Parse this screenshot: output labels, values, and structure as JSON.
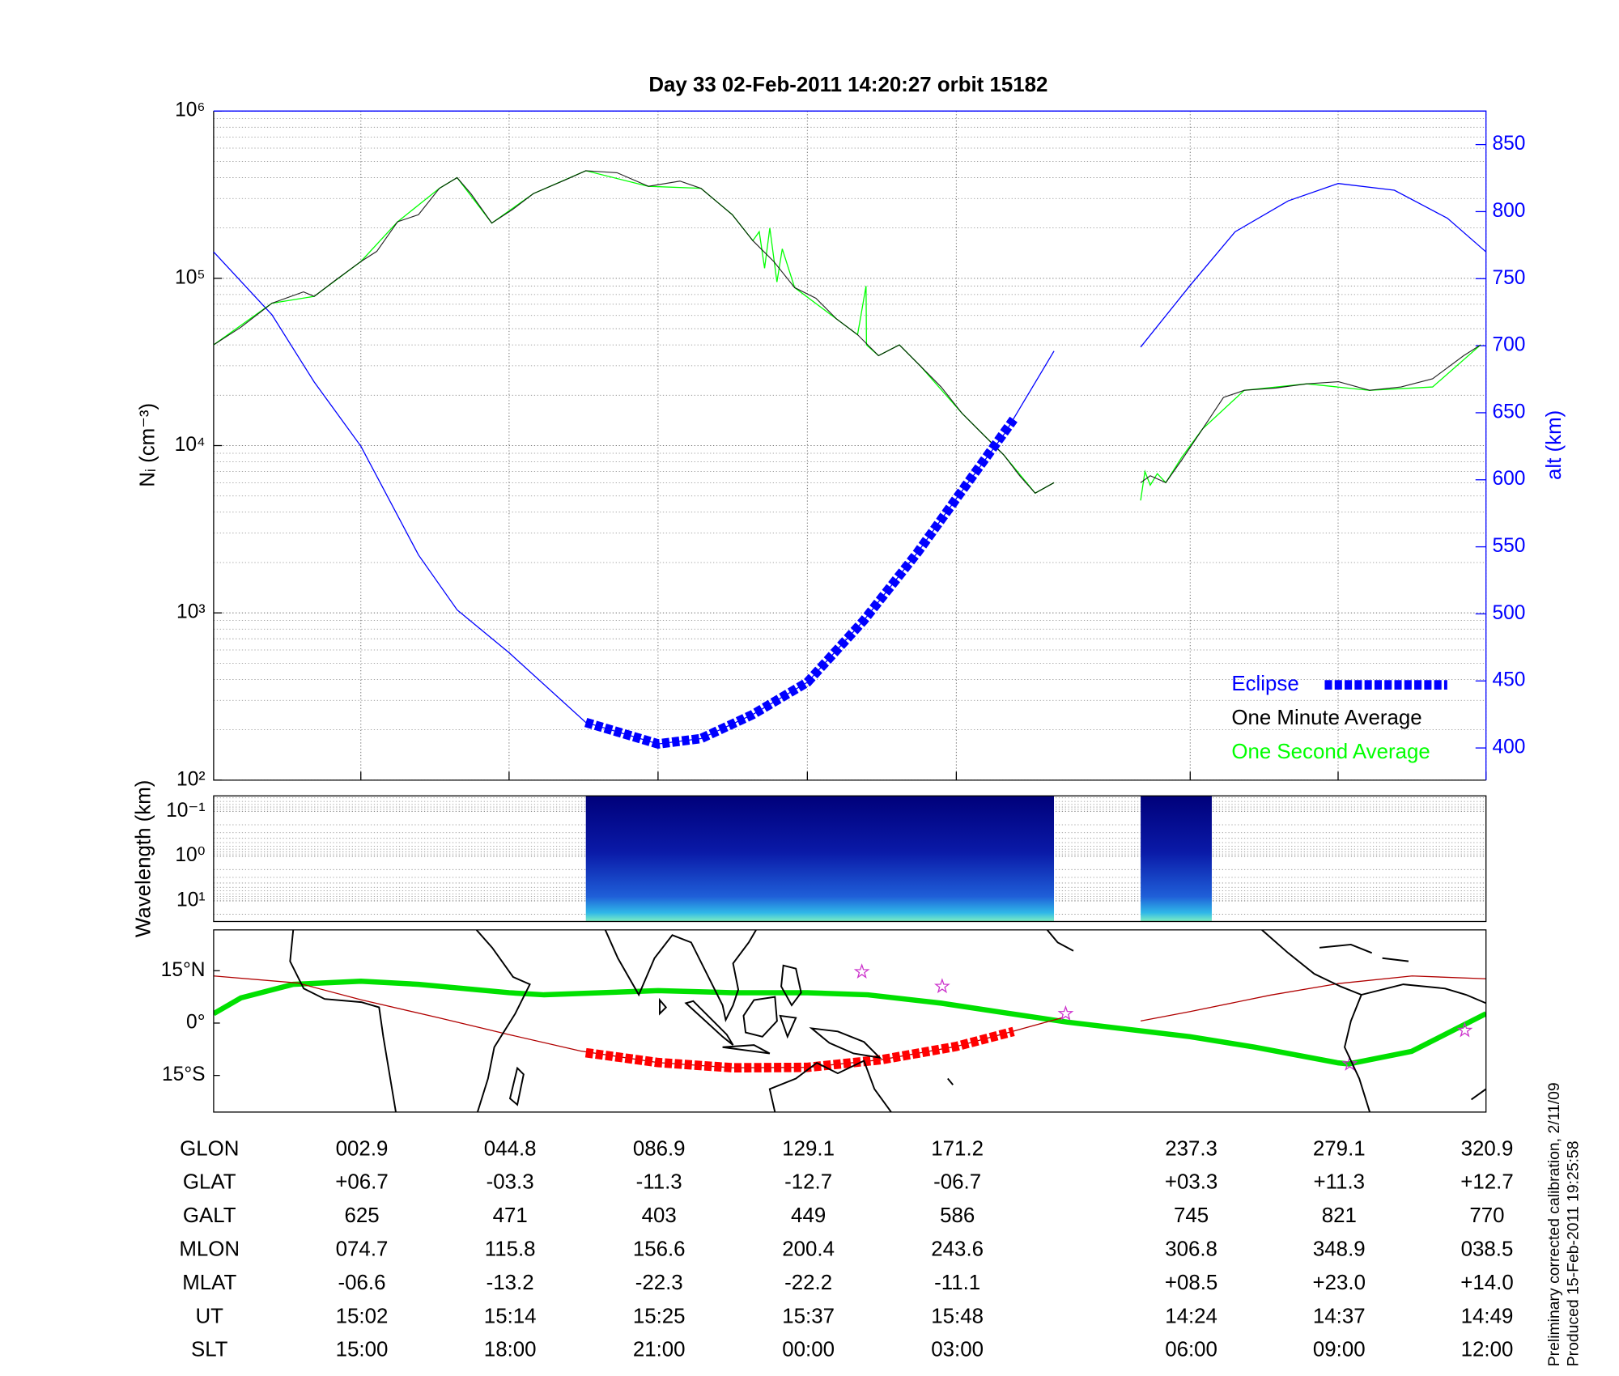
{
  "chart_data": [
    {
      "type": "line",
      "title": "Day 33  02-Feb-2011 14:20:27   orbit 15182",
      "ylabel": "Nᵢ (cm⁻³)",
      "y2label": "alt (km)",
      "log_y": true,
      "grid": true,
      "legend": "lower right",
      "xlim": [
        -38.7,
        320.9
      ],
      "xticks": [
        2.9,
        44.8,
        86.9,
        129.1,
        171.2,
        237.3,
        279.1,
        320.9
      ],
      "ylim": [
        100,
        1000000
      ],
      "yticks": [
        {
          "value": 100,
          "label": "10²"
        },
        {
          "value": 1000,
          "label": "10³"
        },
        {
          "value": 10000,
          "label": "10⁴"
        },
        {
          "value": 100000,
          "label": "10⁵"
        },
        {
          "value": 1000000,
          "label": "10⁶"
        }
      ],
      "y2lim": [
        376,
        875
      ],
      "y2ticks": [
        400,
        450,
        500,
        550,
        600,
        650,
        700,
        750,
        800,
        850
      ],
      "y2color": "#0000ff",
      "series": [
        {
          "name": "Eclipse",
          "color": "#0000ff",
          "axis": "y2",
          "dashed": true,
          "x": [
            66.5,
            86.9,
            99.0,
            113.7,
            129.1,
            145.0,
            160.0,
            171.2,
            187.4
          ],
          "values": [
            419,
            403,
            407,
            425,
            449,
            495,
            545,
            586,
            645
          ]
        },
        {
          "name": "One Minute Average",
          "color": "#000000",
          "x": [
            -38.7,
            -31.0,
            -22.2,
            -13.3,
            -10.3,
            -4.4,
            2.9,
            7.4,
            13.3,
            19.2,
            25.1,
            30.1,
            34.0,
            39.9,
            45.8,
            51.7,
            60.6,
            66.5,
            75.3,
            84.2,
            93.1,
            99.0,
            107.9,
            113.7,
            119.6,
            125.5,
            131.5,
            137.4,
            143.3,
            149.2,
            155.1,
            161.0,
            166.9,
            172.8,
            178.7,
            184.6,
            189.1,
            193.5,
            198.8,
            null,
            223.3,
            226.0,
            230.4,
            234.9,
            240.8,
            246.7,
            252.6,
            261.5,
            270.3,
            279.2,
            288.0,
            296.9,
            305.8,
            314.6,
            319.4
          ],
          "values": [
            40000,
            51000,
            71000,
            83000,
            78000,
            97000,
            126000,
            145000,
            218000,
            240000,
            345000,
            400000,
            321000,
            214000,
            258000,
            321000,
            387000,
            440000,
            428000,
            355000,
            381000,
            345000,
            240000,
            168000,
            126000,
            88000,
            76000,
            57000,
            46000,
            34500,
            40000,
            30000,
            22400,
            15600,
            11700,
            8800,
            6600,
            5200,
            6000,
            null,
            6000,
            6600,
            6000,
            8200,
            12600,
            19400,
            21400,
            22100,
            23400,
            24100,
            21400,
            22400,
            25100,
            34500,
            40000
          ]
        },
        {
          "name": "One Second Average",
          "color": "#00ff00",
          "x": [
            -38.7,
            -22.2,
            -10.3,
            2.9,
            13.3,
            25.1,
            30.1,
            39.9,
            51.7,
            66.5,
            84.2,
            99.0,
            107.9,
            113.7,
            115.5,
            117.0,
            118.5,
            120.5,
            122.0,
            125.5,
            137.4,
            143.3,
            145.7,
            145.8,
            149.2,
            155.1,
            161.0,
            172.8,
            184.6,
            193.5,
            198.8,
            null,
            223.3,
            224.5,
            226.0,
            228.0,
            230.4,
            234.9,
            240.8,
            252.6,
            270.3,
            288.0,
            305.8,
            319.4
          ],
          "values": [
            40000,
            71000,
            78000,
            126000,
            218000,
            345000,
            400000,
            214000,
            321000,
            440000,
            355000,
            345000,
            240000,
            168000,
            190000,
            115000,
            200000,
            95000,
            150000,
            88000,
            57000,
            46000,
            90000,
            40000,
            34500,
            40000,
            30000,
            15600,
            8800,
            5200,
            6000,
            null,
            4700,
            7000,
            5800,
            6800,
            6000,
            8500,
            12600,
            21400,
            23400,
            21400,
            22400,
            40000
          ]
        },
        {
          "color": "#0000ff",
          "axis": "y2",
          "x": [
            -38.7,
            -22.2,
            -10.3,
            2.9,
            19.2,
            30.1,
            44.8,
            66.5,
            86.9,
            99.0,
            113.7,
            129.1,
            145.0,
            160.0,
            171.2,
            185.0,
            198.8,
            null,
            223.3,
            237.3,
            250.0,
            265.0,
            279.1,
            295.0,
            310.0,
            320.9
          ],
          "values": [
            770,
            723,
            673,
            625,
            544,
            503,
            471,
            419,
            403,
            407,
            425,
            449,
            495,
            545,
            586,
            635,
            696,
            null,
            699,
            745,
            785,
            808,
            821,
            816,
            795,
            770
          ]
        }
      ]
    },
    {
      "type": "spectrogram",
      "ylabel": "Wavelength (km)",
      "log_y": true,
      "y_inverted": true,
      "grid": true,
      "xlim": [
        -38.7,
        320.9
      ],
      "ylim": [
        0.045,
        29
      ],
      "yticks": [
        {
          "value": 0.1,
          "label": "10⁻¹"
        },
        {
          "value": 1,
          "label": "10⁰"
        },
        {
          "value": 10,
          "label": "10¹"
        }
      ],
      "intervals": [
        [
          66.5,
          198.8
        ],
        [
          223.3,
          243.4
        ]
      ]
    },
    {
      "type": "map",
      "xlim": [
        -38.7,
        320.9
      ],
      "ylim": [
        -25.5,
        26.7
      ],
      "yticks": [
        {
          "value": 15,
          "label": "15°N"
        },
        {
          "value": 0,
          "label": "0°"
        },
        {
          "value": -15,
          "label": "15°S"
        }
      ],
      "series": [
        {
          "color": "#00e000",
          "width": 5,
          "x": [
            -38.7,
            -31.0,
            -16.2,
            2.9,
            19.2,
            44.8,
            54.7,
            86.9,
            107.9,
            129.1,
            146.2,
            166.9,
            184.6,
            202.4,
            237.3,
            255.5,
            279.1,
            282.1,
            299.9,
            320.9
          ],
          "values": [
            2.7,
            7.2,
            11.1,
            12.0,
            11.1,
            8.7,
            8.1,
            9.3,
            8.7,
            8.7,
            8.1,
            5.7,
            3.0,
            0.3,
            -3.9,
            -6.9,
            -11.4,
            -11.7,
            -8.1,
            2.7
          ]
        },
        {
          "color": "#b00000",
          "width": 1,
          "x": [
            -38.7,
            -15.0,
            2.9,
            25.0,
            44.8,
            65.0,
            86.9,
            108.0,
            129.1,
            150.0,
            171.2,
            187.0,
            201.0,
            null,
            223.3,
            237.3,
            260.0,
            279.1,
            300.0,
            320.9
          ],
          "values": [
            13.5,
            11.5,
            6.7,
            1.5,
            -3.3,
            -8.0,
            -11.3,
            -12.8,
            -12.7,
            -10.5,
            -6.7,
            -2.4,
            1.5,
            null,
            0.6,
            3.3,
            8.0,
            11.3,
            13.5,
            12.7
          ]
        },
        {
          "color": "#ff0000",
          "width": 9,
          "dashed": true,
          "x": [
            66.5,
            86.9,
            108.0,
            129.1,
            150.0,
            171.2,
            187.4
          ],
          "values": [
            -8.5,
            -11.3,
            -12.8,
            -12.7,
            -10.5,
            -6.7,
            -2.4
          ]
        }
      ],
      "stars": {
        "color": "#cc33cc",
        "x": [
          144.5,
          167.2,
          202.1,
          282.4,
          314.9
        ],
        "values": [
          14.7,
          10.5,
          2.7,
          -11.7,
          -2.1
        ]
      }
    }
  ],
  "table": {
    "rows": [
      {
        "label": "GLON",
        "cells": [
          "002.9",
          "044.8",
          "086.9",
          "129.1",
          "171.2",
          "237.3",
          "279.1",
          "320.9"
        ]
      },
      {
        "label": "GLAT",
        "cells": [
          "+06.7",
          "-03.3",
          "-11.3",
          "-12.7",
          "-06.7",
          "+03.3",
          "+11.3",
          "+12.7"
        ]
      },
      {
        "label": "GALT",
        "cells": [
          "625",
          "471",
          "403",
          "449",
          "586",
          "745",
          "821",
          "770"
        ]
      },
      {
        "label": "MLON",
        "cells": [
          "074.7",
          "115.8",
          "156.6",
          "200.4",
          "243.6",
          "306.8",
          "348.9",
          "038.5"
        ]
      },
      {
        "label": "MLAT",
        "cells": [
          "-06.6",
          "-13.2",
          "-22.3",
          "-22.2",
          "-11.1",
          "+08.5",
          "+23.0",
          "+14.0"
        ]
      },
      {
        "label": "UT",
        "cells": [
          "15:02",
          "15:14",
          "15:25",
          "15:37",
          "15:48",
          "14:24",
          "14:37",
          "14:49"
        ]
      },
      {
        "label": "SLT",
        "cells": [
          "15:00",
          "18:00",
          "21:00",
          "00:00",
          "03:00",
          "06:00",
          "09:00",
          "12:00"
        ]
      }
    ]
  },
  "notes": [
    "Preliminary corrected calibration, 2/11/09",
    "Produced 15-Feb-2011 19:25:58"
  ]
}
